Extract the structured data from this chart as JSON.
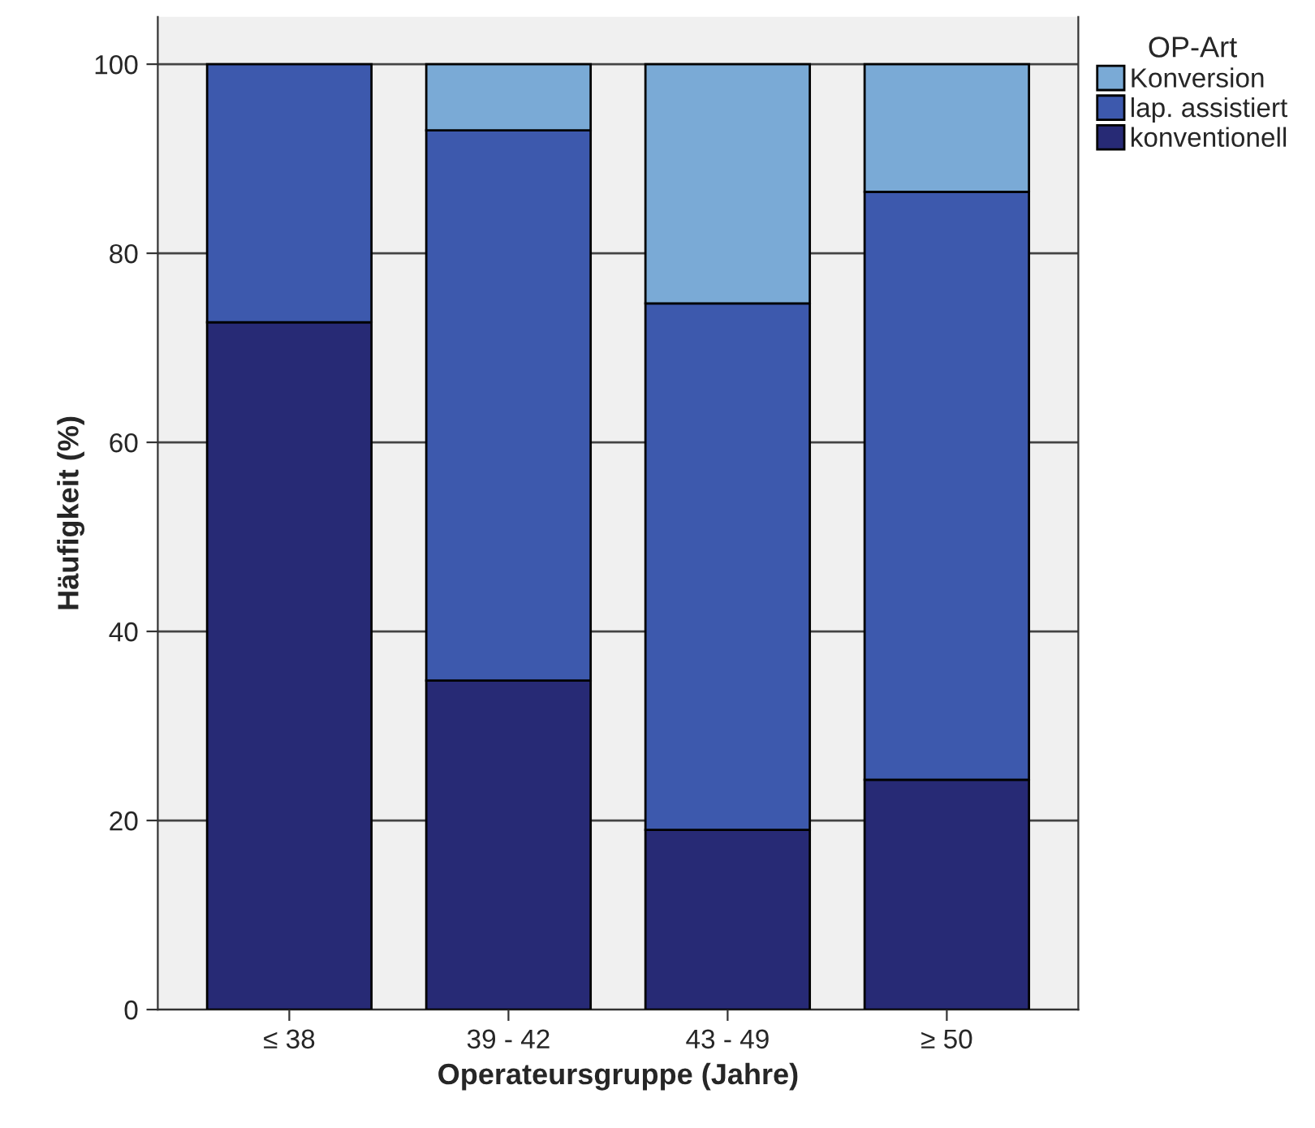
{
  "chart_data": {
    "type": "bar",
    "stacked": true,
    "xlabel": "Operateursgruppe (Jahre)",
    "ylabel": "Häufigkeit (%)",
    "legend_title": "OP-Art",
    "legend": "top right",
    "categories": [
      "≤ 38",
      "39 - 42",
      "43 - 49",
      "≥ 50"
    ],
    "series": [
      {
        "name": "konventionell",
        "color": "#272a75",
        "values": [
          72.7,
          34.8,
          19.0,
          24.3
        ]
      },
      {
        "name": "lap. assistiert",
        "color": "#3d59ad",
        "values": [
          27.3,
          58.2,
          55.7,
          62.2
        ]
      },
      {
        "name": "Konversion",
        "color": "#7aaad6",
        "values": [
          null,
          7.0,
          25.3,
          13.5
        ]
      }
    ],
    "ylim": [
      0,
      105
    ],
    "yticks": [
      0,
      20,
      40,
      60,
      80,
      100
    ],
    "grid": "y"
  }
}
